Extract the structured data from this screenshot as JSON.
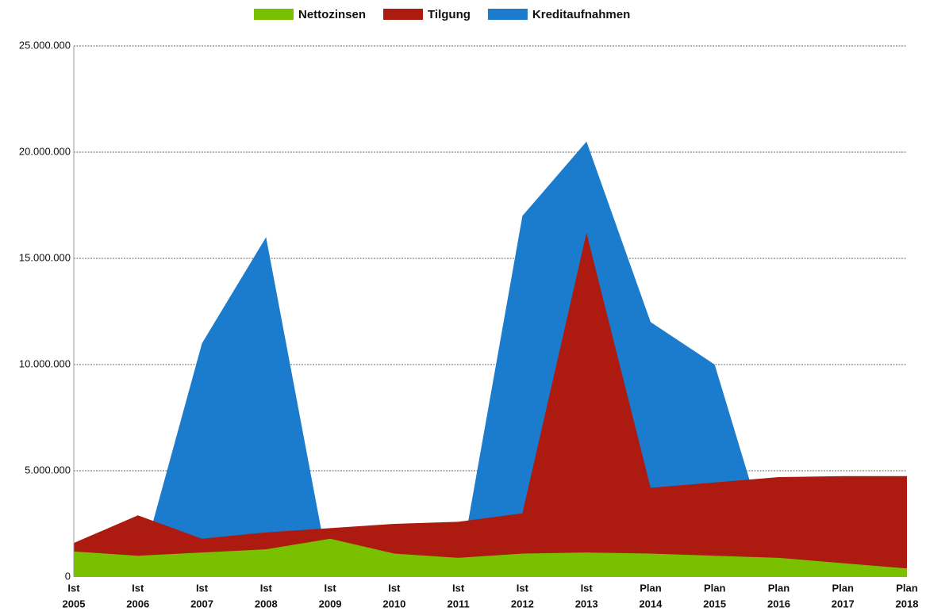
{
  "chart_data": {
    "type": "area",
    "categories": [
      [
        "Ist",
        "2005"
      ],
      [
        "Ist",
        "2006"
      ],
      [
        "Ist",
        "2007"
      ],
      [
        "Ist",
        "2008"
      ],
      [
        "Ist",
        "2009"
      ],
      [
        "Ist",
        "2010"
      ],
      [
        "Ist",
        "2011"
      ],
      [
        "Ist",
        "2012"
      ],
      [
        "Ist",
        "2013"
      ],
      [
        "Plan",
        "2014"
      ],
      [
        "Plan",
        "2015"
      ],
      [
        "Plan",
        "2016"
      ],
      [
        "Plan",
        "2017"
      ],
      [
        "Plan",
        "2018"
      ]
    ],
    "series": [
      {
        "name": "Kreditaufnahmen",
        "color": "#1b7bcc",
        "values": [
          0,
          0,
          11000000,
          16000000,
          0,
          0,
          0,
          17000000,
          20500000,
          12000000,
          10000000,
          0,
          0,
          0
        ]
      },
      {
        "name": "Tilgung",
        "color": "#ad1a10",
        "values": [
          1600000,
          2900000,
          1800000,
          2100000,
          2300000,
          2500000,
          2600000,
          3000000,
          16200000,
          4200000,
          4450000,
          4700000,
          4750000,
          4750000
        ]
      },
      {
        "name": "Nettozinsen",
        "color": "#78c000",
        "values": [
          1200000,
          1000000,
          1150000,
          1300000,
          1800000,
          1100000,
          900000,
          1100000,
          1150000,
          1100000,
          1000000,
          900000,
          650000,
          400000
        ]
      }
    ],
    "legend_order": [
      2,
      1,
      0
    ],
    "ylim": [
      0,
      25000000
    ],
    "yticks": [
      0,
      {
        "value": 5000000,
        "label": "5.000.000"
      },
      {
        "value": 10000000,
        "label": "10.000.000"
      },
      {
        "value": 15000000,
        "label": "15.000.000"
      },
      {
        "value": 20000000,
        "label": "20.000.000"
      },
      {
        "value": 25000000,
        "label": "25.000.000"
      }
    ],
    "grid": true,
    "legend": "top"
  }
}
